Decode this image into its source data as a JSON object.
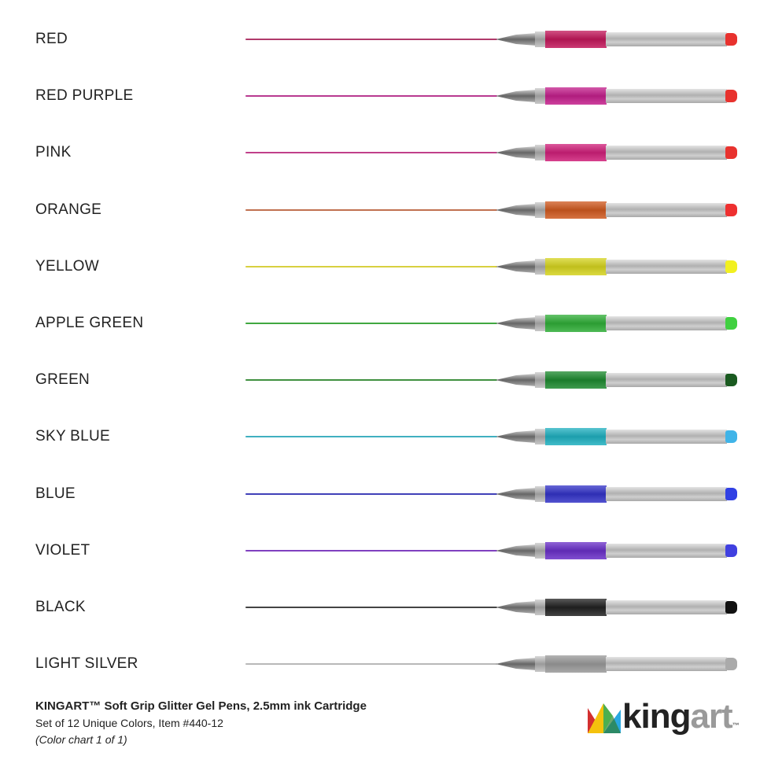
{
  "colors": [
    {
      "name": "RED",
      "ink": "#b03a6a",
      "grip": "#c2185b",
      "cap": "#e8322e"
    },
    {
      "name": "RED PURPLE",
      "ink": "#b83a90",
      "grip": "#c4208c",
      "cap": "#e8322e"
    },
    {
      "name": "PINK",
      "ink": "#c0408a",
      "grip": "#d0207a",
      "cap": "#e8322e"
    },
    {
      "name": "ORANGE",
      "ink": "#c07050",
      "grip": "#d05a20",
      "cap": "#ee3030"
    },
    {
      "name": "YELLOW",
      "ink": "#d8d040",
      "grip": "#d6d420",
      "cap": "#f2f020"
    },
    {
      "name": "APPLE GREEN",
      "ink": "#40a840",
      "grip": "#30ae38",
      "cap": "#40d040"
    },
    {
      "name": "GREEN",
      "ink": "#409040",
      "grip": "#1e8a30",
      "cap": "#1a5a20"
    },
    {
      "name": "SKY BLUE",
      "ink": "#40b0c0",
      "grip": "#20b0c0",
      "cap": "#40b4e8"
    },
    {
      "name": "BLUE",
      "ink": "#4040b8",
      "grip": "#3434c8",
      "cap": "#3040e4"
    },
    {
      "name": "VIOLET",
      "ink": "#8040c0",
      "grip": "#6a30c8",
      "cap": "#4040e0"
    },
    {
      "name": "BLACK",
      "ink": "#444444",
      "grip": "#222222",
      "cap": "#111111"
    },
    {
      "name": "LIGHT SILVER",
      "ink": "#b8b8b8",
      "grip": "#9a9a9a",
      "cap": "#aaaaaa"
    }
  ],
  "footer": {
    "title": "KINGART™ Soft Grip Glitter Gel Pens, 2.5mm ink Cartridge",
    "subtitle": "Set of 12 Unique Colors, Item #440-12",
    "note": "(Color chart 1 of 1)"
  },
  "logo": {
    "text_king": "king",
    "text_art": "art",
    "tm": "™"
  }
}
